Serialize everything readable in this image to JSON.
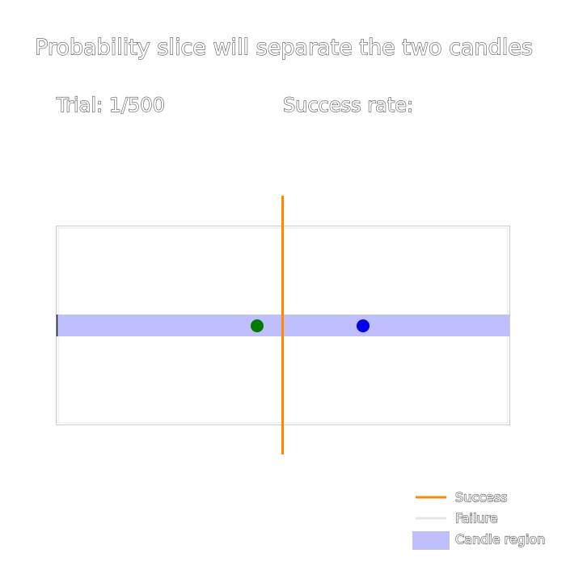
{
  "header": {
    "title": "Probability slice will separate the two candles",
    "trial": "Trial: 1/500",
    "success_rate": "Success rate:"
  },
  "legend": {
    "items": [
      "Success",
      "Failure",
      "Candle region"
    ]
  }
}
